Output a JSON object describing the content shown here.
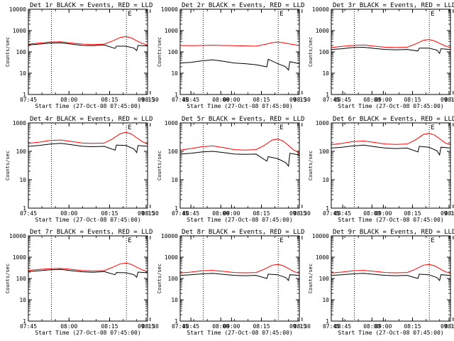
{
  "chart_data": [
    {
      "type": "line",
      "title": "Det 1r BLACK = Events, RED = LLD",
      "xlabel": "Start Time (27-Oct-08 07:45:00)",
      "ylabel": "Counts/sec",
      "y_scale": "log",
      "ylim": [
        1,
        10000
      ],
      "yticks": [
        "1",
        "10",
        "100",
        "1000",
        "10000"
      ],
      "xlim_minutes": [
        0,
        44
      ],
      "xticks": [
        "07:45",
        "08:00",
        "08:15",
        "08:30",
        "08:45",
        "09:00",
        "09:15"
      ],
      "vlines_minutes": [
        8.5,
        36.2
      ],
      "marker": "E",
      "series": [
        {
          "name": "BLACK = Events",
          "color": "#000000",
          "x": [
            0,
            4,
            8,
            12,
            16,
            20,
            24,
            28,
            32,
            32.5,
            36,
            39,
            40,
            40.5,
            44
          ],
          "y": [
            210,
            230,
            260,
            265,
            230,
            200,
            195,
            210,
            145,
            185,
            185,
            150,
            115,
            200,
            190
          ]
        },
        {
          "name": "RED = LLD",
          "color": "#ff0000",
          "x": [
            0,
            4,
            8,
            12,
            16,
            20,
            24,
            28,
            31,
            34,
            36,
            38,
            40,
            42,
            44
          ],
          "y": [
            230,
            260,
            290,
            300,
            260,
            230,
            220,
            230,
            320,
            480,
            520,
            450,
            330,
            250,
            210
          ]
        }
      ]
    },
    {
      "type": "line",
      "title": "Det 2r BLACK = Events, RED = LLD",
      "xlabel": "Start Time (27-Oct-08 07:45:00)",
      "ylabel": "Counts/sec",
      "y_scale": "log",
      "ylim": [
        1,
        10000
      ],
      "yticks": [
        "1",
        "10",
        "100",
        "1000",
        "10000"
      ],
      "xlim_minutes": [
        0,
        44
      ],
      "xticks": [
        "07:45",
        "08:00",
        "08:15",
        "08:30",
        "08:45",
        "09:00",
        "09:15"
      ],
      "vlines_minutes": [
        8.5,
        36.2
      ],
      "marker": "E",
      "series": [
        {
          "name": "BLACK = Events",
          "color": "#000000",
          "x": [
            0,
            4,
            8,
            12,
            16,
            20,
            24,
            28,
            32,
            32.5,
            36,
            39,
            40,
            40.5,
            44
          ],
          "y": [
            30,
            32,
            38,
            42,
            36,
            30,
            28,
            25,
            20,
            45,
            28,
            20,
            14,
            35,
            28
          ]
        },
        {
          "name": "RED = LLD",
          "color": "#ff0000",
          "x": [
            0,
            4,
            8,
            12,
            16,
            20,
            24,
            28,
            31,
            34,
            36,
            38,
            40,
            42,
            44
          ],
          "y": [
            200,
            195,
            200,
            205,
            200,
            195,
            190,
            185,
            220,
            270,
            290,
            270,
            240,
            220,
            200
          ]
        }
      ]
    },
    {
      "type": "line",
      "title": "Det 3r BLACK = Events, RED = LLD",
      "xlabel": "Start Time (27-Oct-08 07:45:00)",
      "ylabel": "Counts/sec",
      "y_scale": "log",
      "ylim": [
        1,
        10000
      ],
      "yticks": [
        "1",
        "10",
        "100",
        "1000",
        "10000"
      ],
      "xlim_minutes": [
        0,
        44
      ],
      "xticks": [
        "07:45",
        "08:00",
        "08:15",
        "08:30",
        "08:45",
        "09:00",
        "09:15"
      ],
      "vlines_minutes": [
        8.5,
        36.2
      ],
      "marker": "E",
      "series": [
        {
          "name": "BLACK = Events",
          "color": "#000000",
          "x": [
            0,
            4,
            8,
            12,
            16,
            20,
            24,
            28,
            32,
            32.5,
            36,
            39,
            40,
            40.5,
            44
          ],
          "y": [
            130,
            140,
            160,
            165,
            145,
            130,
            125,
            130,
            110,
            150,
            150,
            120,
            85,
            140,
            130
          ]
        },
        {
          "name": "RED = LLD",
          "color": "#ff0000",
          "x": [
            0,
            4,
            8,
            12,
            16,
            20,
            24,
            28,
            31,
            34,
            36,
            38,
            40,
            42,
            44
          ],
          "y": [
            160,
            180,
            200,
            210,
            185,
            165,
            160,
            165,
            230,
            350,
            380,
            330,
            250,
            190,
            160
          ]
        }
      ]
    },
    {
      "type": "line",
      "title": "Det 4r BLACK = Events, RED = LLD",
      "xlabel": "Start Time (27-Oct-08 07:45:00)",
      "ylabel": "Counts/sec",
      "y_scale": "log",
      "ylim": [
        1,
        1000
      ],
      "yticks": [
        "1",
        "10",
        "100",
        "1000"
      ],
      "xlim_minutes": [
        0,
        44
      ],
      "xticks": [
        "07:45",
        "08:00",
        "08:15",
        "08:30",
        "08:45",
        "09:00",
        "09:15"
      ],
      "vlines_minutes": [
        8.5,
        36.2
      ],
      "marker": "E",
      "series": [
        {
          "name": "BLACK = Events",
          "color": "#000000",
          "x": [
            0,
            4,
            8,
            12,
            16,
            20,
            24,
            28,
            32,
            32.5,
            36,
            39,
            40,
            40.5,
            44
          ],
          "y": [
            150,
            160,
            180,
            190,
            170,
            150,
            145,
            150,
            110,
            165,
            160,
            120,
            90,
            160,
            150
          ]
        },
        {
          "name": "RED = LLD",
          "color": "#ff0000",
          "x": [
            0,
            4,
            8,
            12,
            16,
            20,
            24,
            28,
            31,
            34,
            36,
            38,
            40,
            42,
            44
          ],
          "y": [
            190,
            210,
            240,
            250,
            220,
            195,
            190,
            195,
            270,
            420,
            470,
            410,
            300,
            220,
            180
          ]
        }
      ]
    },
    {
      "type": "line",
      "title": "Det 5r BLACK = Events, RED = LLD",
      "xlabel": "Start Time (27-Oct-08 07:45:00)",
      "ylabel": "Counts/sec",
      "y_scale": "log",
      "ylim": [
        1,
        1000
      ],
      "yticks": [
        "1",
        "10",
        "100",
        "1000"
      ],
      "xlim_minutes": [
        0,
        44
      ],
      "xticks": [
        "07:45",
        "08:00",
        "08:15",
        "08:30",
        "08:45",
        "09:00",
        "09:15"
      ],
      "vlines_minutes": [
        8.5,
        36.2
      ],
      "marker": "E",
      "series": [
        {
          "name": "BLACK = Events",
          "color": "#000000",
          "x": [
            0,
            4,
            8,
            12,
            16,
            20,
            24,
            28,
            32,
            32.5,
            36,
            39,
            40,
            40.5,
            44
          ],
          "y": [
            80,
            85,
            95,
            100,
            90,
            80,
            78,
            80,
            45,
            65,
            55,
            40,
            30,
            85,
            75
          ]
        },
        {
          "name": "RED = LLD",
          "color": "#ff0000",
          "x": [
            0,
            4,
            8,
            12,
            16,
            20,
            24,
            28,
            31,
            34,
            36,
            38,
            40,
            42,
            44
          ],
          "y": [
            110,
            125,
            145,
            155,
            135,
            115,
            110,
            115,
            160,
            250,
            270,
            230,
            160,
            110,
            90
          ]
        }
      ]
    },
    {
      "type": "line",
      "title": "Det 6r BLACK = Events, RED = LLD",
      "xlabel": "Start Time (27-Oct-08 07:45:00)",
      "ylabel": "Counts/sec",
      "y_scale": "log",
      "ylim": [
        1,
        1000
      ],
      "yticks": [
        "1",
        "10",
        "100",
        "1000"
      ],
      "xlim_minutes": [
        0,
        44
      ],
      "xticks": [
        "07:45",
        "08:00",
        "08:15",
        "08:30",
        "08:45",
        "09:00",
        "09:15"
      ],
      "vlines_minutes": [
        8.5,
        36.2
      ],
      "marker": "E",
      "series": [
        {
          "name": "BLACK = Events",
          "color": "#000000",
          "x": [
            0,
            4,
            8,
            12,
            16,
            20,
            24,
            28,
            32,
            32.5,
            36,
            39,
            40,
            40.5,
            44
          ],
          "y": [
            130,
            140,
            155,
            165,
            145,
            130,
            125,
            130,
            95,
            150,
            140,
            105,
            75,
            140,
            130
          ]
        },
        {
          "name": "RED = LLD",
          "color": "#ff0000",
          "x": [
            0,
            4,
            8,
            12,
            16,
            20,
            24,
            28,
            31,
            34,
            36,
            38,
            40,
            42,
            44
          ],
          "y": [
            170,
            190,
            220,
            230,
            205,
            180,
            175,
            180,
            250,
            390,
            430,
            380,
            280,
            200,
            170
          ]
        }
      ]
    },
    {
      "type": "line",
      "title": "Det 7r BLACK = Events, RED = LLD",
      "xlabel": "Start Time (27-Oct-08 07:45:00)",
      "ylabel": "Counts/sec",
      "y_scale": "log",
      "ylim": [
        1,
        10000
      ],
      "yticks": [
        "1",
        "10",
        "100",
        "1000",
        "10000"
      ],
      "xlim_minutes": [
        0,
        44
      ],
      "xticks": [
        "07:45",
        "08:00",
        "08:15",
        "08:30",
        "08:45",
        "09:00",
        "09:15"
      ],
      "vlines_minutes": [
        8.5,
        36.2
      ],
      "marker": "E",
      "series": [
        {
          "name": "BLACK = Events",
          "color": "#000000",
          "x": [
            0,
            4,
            8,
            12,
            16,
            20,
            24,
            28,
            32,
            32.5,
            36,
            39,
            40,
            40.5,
            44
          ],
          "y": [
            210,
            230,
            255,
            265,
            230,
            205,
            195,
            210,
            150,
            190,
            185,
            150,
            115,
            200,
            185
          ]
        },
        {
          "name": "RED = LLD",
          "color": "#ff0000",
          "x": [
            0,
            4,
            8,
            12,
            16,
            20,
            24,
            28,
            31,
            34,
            36,
            38,
            40,
            42,
            44
          ],
          "y": [
            240,
            265,
            290,
            300,
            265,
            235,
            225,
            235,
            330,
            490,
            530,
            460,
            340,
            255,
            215
          ]
        }
      ]
    },
    {
      "type": "line",
      "title": "Det 8r BLACK = Events, RED = LLD",
      "xlabel": "Start Time (27-Oct-08 07:45:00)",
      "ylabel": "Counts/sec",
      "y_scale": "log",
      "ylim": [
        1,
        10000
      ],
      "yticks": [
        "1",
        "10",
        "100",
        "1000",
        "10000"
      ],
      "xlim_minutes": [
        0,
        44
      ],
      "xticks": [
        "07:45",
        "08:00",
        "08:15",
        "08:30",
        "08:45",
        "09:00",
        "09:15"
      ],
      "vlines_minutes": [
        8.5,
        36.2
      ],
      "marker": "E",
      "series": [
        {
          "name": "BLACK = Events",
          "color": "#000000",
          "x": [
            0,
            4,
            8,
            12,
            16,
            20,
            24,
            28,
            32,
            32.5,
            36,
            39,
            40,
            40.5,
            44
          ],
          "y": [
            140,
            150,
            165,
            175,
            155,
            140,
            135,
            140,
            100,
            160,
            150,
            110,
            80,
            150,
            140
          ]
        },
        {
          "name": "RED = LLD",
          "color": "#ff0000",
          "x": [
            0,
            4,
            8,
            12,
            16,
            20,
            24,
            28,
            31,
            34,
            36,
            38,
            40,
            42,
            44
          ],
          "y": [
            180,
            200,
            230,
            240,
            215,
            190,
            185,
            190,
            270,
            420,
            460,
            400,
            290,
            210,
            175
          ]
        }
      ]
    },
    {
      "type": "line",
      "title": "Det 9r BLACK = Events, RED = LLD",
      "xlabel": "Start Time (27-Oct-08 07:45:00)",
      "ylabel": "Counts/sec",
      "y_scale": "log",
      "ylim": [
        1,
        10000
      ],
      "yticks": [
        "1",
        "10",
        "100",
        "1000",
        "10000"
      ],
      "xlim_minutes": [
        0,
        44
      ],
      "xticks": [
        "07:45",
        "08:00",
        "08:15",
        "08:30",
        "08:45",
        "09:00",
        "09:15"
      ],
      "vlines_minutes": [
        8.5,
        36.2
      ],
      "marker": "E",
      "series": [
        {
          "name": "BLACK = Events",
          "color": "#000000",
          "x": [
            0,
            4,
            8,
            12,
            16,
            20,
            24,
            28,
            32,
            32.5,
            36,
            39,
            40,
            40.5,
            44
          ],
          "y": [
            140,
            150,
            165,
            175,
            155,
            140,
            135,
            140,
            100,
            160,
            150,
            110,
            80,
            150,
            140
          ]
        },
        {
          "name": "RED = LLD",
          "color": "#ff0000",
          "x": [
            0,
            4,
            8,
            12,
            16,
            20,
            24,
            28,
            31,
            34,
            36,
            38,
            40,
            42,
            44
          ],
          "y": [
            180,
            200,
            230,
            240,
            215,
            190,
            185,
            190,
            270,
            420,
            460,
            400,
            290,
            210,
            175
          ]
        }
      ]
    }
  ]
}
